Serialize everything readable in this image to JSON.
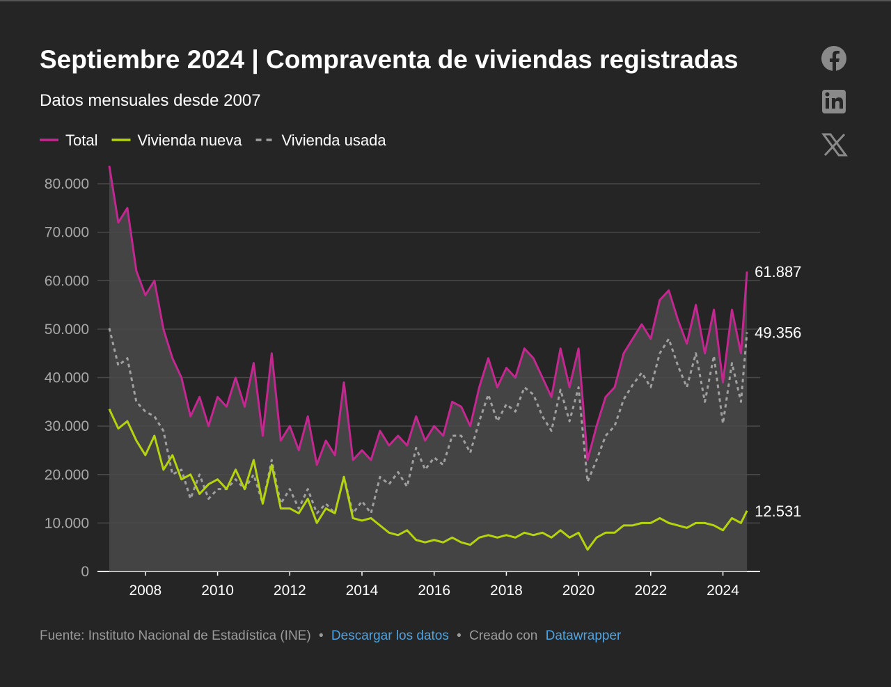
{
  "chart_data": {
    "type": "line",
    "title": "Septiembre 2024 | Compraventa de viviendas registradas",
    "subtitle": "Datos mensuales desde 2007",
    "x": [
      2007,
      2007.25,
      2007.5,
      2007.75,
      2008,
      2008.25,
      2008.5,
      2008.75,
      2009,
      2009.25,
      2009.5,
      2009.75,
      2010,
      2010.25,
      2010.5,
      2010.75,
      2011,
      2011.25,
      2011.5,
      2011.75,
      2012,
      2012.25,
      2012.5,
      2012.75,
      2013,
      2013.25,
      2013.5,
      2013.75,
      2014,
      2014.25,
      2014.5,
      2014.75,
      2015,
      2015.25,
      2015.5,
      2015.75,
      2016,
      2016.25,
      2016.5,
      2016.75,
      2017,
      2017.25,
      2017.5,
      2017.75,
      2018,
      2018.25,
      2018.5,
      2018.75,
      2019,
      2019.25,
      2019.5,
      2019.75,
      2020,
      2020.25,
      2020.5,
      2020.75,
      2021,
      2021.25,
      2021.5,
      2021.75,
      2022,
      2022.25,
      2022.5,
      2022.75,
      2023,
      2023.25,
      2023.5,
      2023.75,
      2024,
      2024.25,
      2024.5,
      2024.667
    ],
    "series": [
      {
        "name": "Total",
        "color": "#c2288f",
        "dashed": false,
        "fill": "#4a4a4a",
        "values": [
          83700,
          72000,
          75000,
          62000,
          57000,
          60000,
          50000,
          44000,
          40000,
          32000,
          36000,
          30000,
          36000,
          34000,
          40000,
          34000,
          43000,
          28000,
          45000,
          27000,
          30000,
          25000,
          32000,
          22000,
          27000,
          24000,
          39000,
          23000,
          25000,
          23000,
          29000,
          26000,
          28000,
          26000,
          32000,
          27000,
          30000,
          28000,
          35000,
          34000,
          30000,
          38000,
          44000,
          38000,
          42000,
          40000,
          46000,
          44000,
          40000,
          36000,
          46000,
          38000,
          46000,
          23000,
          30000,
          36000,
          38000,
          45000,
          48000,
          51000,
          48000,
          56000,
          58000,
          52000,
          47000,
          55000,
          45000,
          54000,
          39000,
          54000,
          45000,
          61887
        ],
        "value_labels": [
          null,
          null,
          null,
          null,
          null,
          null,
          null,
          null,
          null,
          null,
          null,
          null,
          null,
          null,
          null,
          null,
          null,
          null,
          null,
          null,
          null,
          null,
          null,
          null,
          null,
          null,
          null,
          null,
          null,
          null,
          null,
          null,
          null,
          null,
          null,
          null,
          null,
          null,
          null,
          null,
          null,
          null,
          null,
          null,
          null,
          null,
          null,
          null,
          null,
          null,
          null,
          null,
          null,
          null,
          null,
          null,
          null,
          null,
          null,
          null,
          null,
          null,
          null,
          null,
          null,
          null,
          null,
          null,
          null,
          null,
          null,
          "61.887"
        ]
      },
      {
        "name": "Vivienda nueva",
        "color": "#b5d40f",
        "dashed": false,
        "values": [
          33500,
          29500,
          31000,
          27000,
          24000,
          28000,
          21000,
          24000,
          19000,
          20000,
          16000,
          18000,
          19000,
          17000,
          21000,
          17000,
          23000,
          14000,
          22000,
          13000,
          13000,
          12000,
          15000,
          10000,
          13000,
          12000,
          19500,
          11000,
          10500,
          11000,
          9500,
          8000,
          7500,
          8500,
          6500,
          6000,
          6500,
          6000,
          7000,
          6000,
          5500,
          7000,
          7500,
          7000,
          7500,
          7000,
          8000,
          7500,
          8000,
          7000,
          8500,
          7000,
          8000,
          4500,
          7000,
          8000,
          8000,
          9500,
          9500,
          10000,
          10000,
          11000,
          10000,
          9500,
          9000,
          10000,
          10000,
          9500,
          8500,
          11000,
          10000,
          12531
        ],
        "value_labels": [
          null,
          null,
          null,
          null,
          null,
          null,
          null,
          null,
          null,
          null,
          null,
          null,
          null,
          null,
          null,
          null,
          null,
          null,
          null,
          null,
          null,
          null,
          null,
          null,
          null,
          null,
          null,
          null,
          null,
          null,
          null,
          null,
          null,
          null,
          null,
          null,
          null,
          null,
          null,
          null,
          null,
          null,
          null,
          null,
          null,
          null,
          null,
          null,
          null,
          null,
          null,
          null,
          null,
          null,
          null,
          null,
          null,
          null,
          null,
          null,
          null,
          null,
          null,
          null,
          null,
          null,
          null,
          null,
          null,
          null,
          null,
          "12.531"
        ]
      },
      {
        "name": "Vivienda usada",
        "color": "#a0a0a0",
        "dashed": true,
        "values": [
          50200,
          42500,
          44000,
          35000,
          33000,
          32000,
          29000,
          20000,
          21000,
          15000,
          20000,
          15000,
          17000,
          17000,
          19000,
          17000,
          20000,
          14000,
          23000,
          14000,
          17000,
          13000,
          17000,
          12000,
          14000,
          12000,
          19500,
          12000,
          14500,
          12000,
          19500,
          18000,
          20500,
          17500,
          25500,
          21000,
          23500,
          22000,
          28000,
          28000,
          24500,
          31000,
          36500,
          31000,
          34500,
          33000,
          38000,
          36500,
          32000,
          29000,
          37500,
          31000,
          38000,
          18500,
          23000,
          28000,
          30000,
          35500,
          38500,
          41000,
          38000,
          45000,
          48000,
          42500,
          38000,
          45000,
          35000,
          44500,
          30500,
          43000,
          35000,
          49356
        ],
        "value_labels": [
          null,
          null,
          null,
          null,
          null,
          null,
          null,
          null,
          null,
          null,
          null,
          null,
          null,
          null,
          null,
          null,
          null,
          null,
          null,
          null,
          null,
          null,
          null,
          null,
          null,
          null,
          null,
          null,
          null,
          null,
          null,
          null,
          null,
          null,
          null,
          null,
          null,
          null,
          null,
          null,
          null,
          null,
          null,
          null,
          null,
          null,
          null,
          null,
          null,
          null,
          null,
          null,
          null,
          null,
          null,
          null,
          null,
          null,
          null,
          null,
          null,
          null,
          null,
          null,
          null,
          null,
          null,
          null,
          null,
          null,
          null,
          "49.356"
        ]
      }
    ],
    "xlim": [
      2007,
      2025
    ],
    "ylim": [
      0,
      80000
    ],
    "xticks": [
      2008,
      2010,
      2012,
      2014,
      2016,
      2018,
      2020,
      2022,
      2024
    ],
    "yticks": [
      0,
      {
        "value": 10000,
        "label": "10.000"
      },
      {
        "value": 20000,
        "label": "20.000"
      },
      {
        "value": 30000,
        "label": "30.000"
      },
      {
        "value": 40000,
        "label": "40.000"
      },
      {
        "value": 50000,
        "label": "50.000"
      },
      {
        "value": 60000,
        "label": "60.000"
      },
      {
        "value": 70000,
        "label": "70.000"
      },
      {
        "value": 80000,
        "label": "80.000"
      }
    ],
    "grid": true,
    "legend": "top-left",
    "footer": {
      "source": "Fuente: Instituto Nacional de Estadística (INE)",
      "separator": "•",
      "download": "Descargar los datos",
      "created": "Creado con",
      "tool": "Datawrapper"
    }
  }
}
